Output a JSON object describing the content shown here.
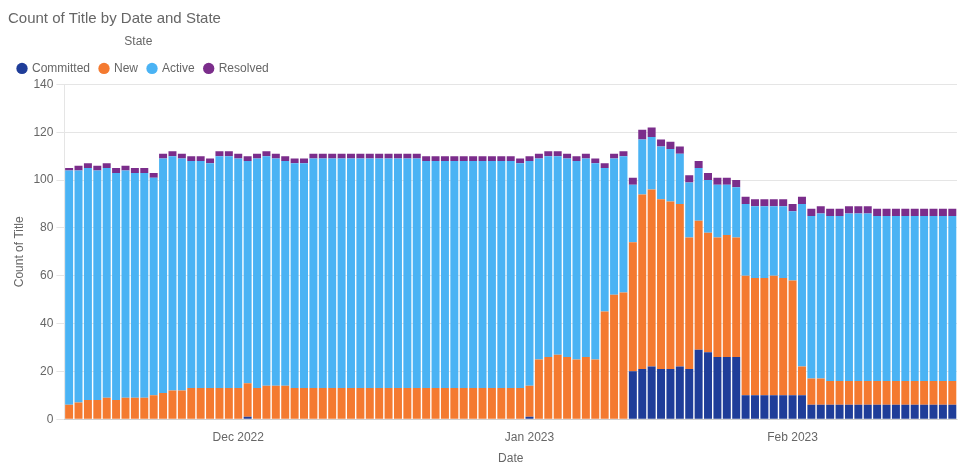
{
  "chart_data": {
    "type": "bar",
    "title": "Count of Title by Date and State",
    "x_label": "Date",
    "y_label": "Count of Title",
    "legend_title": "State",
    "legend": "top",
    "stacked": true,
    "grid": true,
    "categories": [
      null,
      null,
      null,
      null,
      null,
      null,
      null,
      null,
      null,
      null,
      null,
      null,
      null,
      null,
      null,
      null,
      null,
      null,
      "Dec 2022",
      null,
      null,
      null,
      null,
      null,
      null,
      null,
      null,
      null,
      null,
      null,
      null,
      null,
      null,
      null,
      null,
      null,
      null,
      null,
      null,
      null,
      null,
      null,
      null,
      null,
      null,
      null,
      null,
      null,
      null,
      "Jan 2023",
      null,
      null,
      null,
      null,
      null,
      null,
      null,
      null,
      null,
      null,
      null,
      null,
      null,
      null,
      null,
      null,
      null,
      null,
      null,
      null,
      null,
      null,
      null,
      null,
      null,
      null,
      null,
      "Feb 2023",
      null,
      null,
      null,
      null,
      null,
      null,
      null,
      null,
      null,
      null,
      null,
      null,
      null,
      null,
      null,
      null,
      null
    ],
    "series": [
      {
        "name": "Committed",
        "color": "#1f3d99",
        "values": [
          0,
          0,
          0,
          0,
          0,
          0,
          0,
          0,
          0,
          0,
          0,
          0,
          0,
          0,
          0,
          0,
          0,
          0,
          0,
          1,
          0,
          0,
          0,
          0,
          0,
          0,
          0,
          0,
          0,
          0,
          0,
          0,
          0,
          0,
          0,
          0,
          0,
          0,
          0,
          0,
          0,
          0,
          0,
          0,
          0,
          0,
          0,
          0,
          0,
          1,
          0,
          0,
          0,
          0,
          0,
          0,
          0,
          0,
          0,
          0,
          20,
          21,
          22,
          21,
          21,
          22,
          21,
          29,
          28,
          26,
          26,
          26,
          10,
          10,
          10,
          10,
          10,
          10,
          10,
          6,
          6,
          6,
          6,
          6,
          6,
          6,
          6,
          6,
          6,
          6,
          6,
          6,
          6,
          6,
          6
        ]
      },
      {
        "name": "New",
        "color": "#f47a30",
        "values": [
          6,
          7,
          8,
          8,
          9,
          8,
          9,
          9,
          9,
          10,
          11,
          12,
          12,
          13,
          13,
          13,
          13,
          13,
          13,
          14,
          13,
          14,
          14,
          14,
          13,
          13,
          13,
          13,
          13,
          13,
          13,
          13,
          13,
          13,
          13,
          13,
          13,
          13,
          13,
          13,
          13,
          13,
          13,
          13,
          13,
          13,
          13,
          13,
          13,
          13,
          25,
          26,
          27,
          26,
          25,
          26,
          25,
          45,
          52,
          53,
          54,
          73,
          74,
          71,
          70,
          68,
          55,
          54,
          50,
          50,
          51,
          50,
          50,
          49,
          49,
          50,
          49,
          48,
          12,
          11,
          11,
          10,
          10,
          10,
          10,
          10,
          10,
          10,
          10,
          10,
          10,
          10,
          10,
          10,
          10
        ]
      },
      {
        "name": "Active",
        "color": "#4ab3f4",
        "values": [
          98,
          97,
          97,
          96,
          96,
          95,
          95,
          94,
          94,
          91,
          98,
          98,
          97,
          95,
          95,
          94,
          97,
          97,
          96,
          93,
          96,
          96,
          95,
          94,
          94,
          94,
          96,
          96,
          96,
          96,
          96,
          96,
          96,
          96,
          96,
          96,
          96,
          96,
          95,
          95,
          95,
          95,
          95,
          95,
          95,
          95,
          95,
          95,
          94,
          94,
          84,
          84,
          83,
          83,
          83,
          83,
          82,
          60,
          57,
          57,
          24,
          23,
          22,
          22,
          22,
          21,
          23,
          22,
          22,
          22,
          21,
          21,
          30,
          30,
          30,
          29,
          30,
          29,
          68,
          68,
          69,
          69,
          69,
          70,
          70,
          70,
          69,
          69,
          69,
          69,
          69,
          69,
          69,
          69,
          69
        ]
      },
      {
        "name": "Resolved",
        "color": "#7b2d8b",
        "values": [
          1,
          2,
          2,
          2,
          2,
          2,
          2,
          2,
          2,
          2,
          2,
          2,
          2,
          2,
          2,
          2,
          2,
          2,
          2,
          2,
          2,
          2,
          2,
          2,
          2,
          2,
          2,
          2,
          2,
          2,
          2,
          2,
          2,
          2,
          2,
          2,
          2,
          2,
          2,
          2,
          2,
          2,
          2,
          2,
          2,
          2,
          2,
          2,
          2,
          2,
          2,
          2,
          2,
          2,
          2,
          2,
          2,
          2,
          2,
          2,
          3,
          4,
          4,
          3,
          3,
          3,
          3,
          3,
          3,
          3,
          3,
          3,
          3,
          3,
          3,
          3,
          3,
          3,
          3,
          3,
          3,
          3,
          3,
          3,
          3,
          3,
          3,
          3,
          3,
          3,
          3,
          3,
          3,
          3,
          3
        ]
      }
    ],
    "ylim": [
      0,
      140
    ],
    "yticks": [
      0,
      20,
      40,
      60,
      80,
      100,
      120,
      140
    ]
  }
}
